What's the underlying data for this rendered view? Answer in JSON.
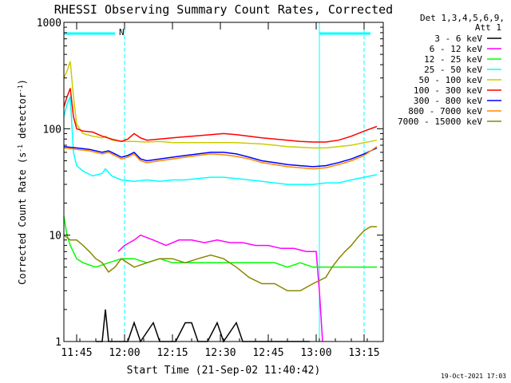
{
  "chart_data": {
    "type": "line",
    "title": "RHESSI Observing Summary Count Rates, Corrected",
    "xlabel": "Start Time (21-Sep-02 11:40:42)",
    "ylabel_main": "Corrected Count Rate (s",
    "ylabel_sup1": "-1",
    "ylabel_mid": " detector",
    "ylabel_sup2": "-1",
    "ylabel_end": ")",
    "y_log": true,
    "ylim": [
      1,
      1000
    ],
    "xlim_min": [
      0,
      100
    ],
    "xticks": [
      {
        "t": 4,
        "label": "11:45"
      },
      {
        "t": 19,
        "label": "12:00"
      },
      {
        "t": 34,
        "label": "12:15"
      },
      {
        "t": 49,
        "label": "12:30"
      },
      {
        "t": 64,
        "label": "12:45"
      },
      {
        "t": 79,
        "label": "13:00"
      },
      {
        "t": 94,
        "label": "13:15"
      }
    ],
    "yticks": [
      {
        "v": 1,
        "label": "1"
      },
      {
        "v": 10,
        "label": "10"
      },
      {
        "v": 100,
        "label": "100"
      },
      {
        "v": 1000,
        "label": "1000"
      }
    ],
    "legend_header1": "Det 1,3,4,5,6,9,",
    "legend_header2": "Att 1",
    "legend_placement": "right",
    "attenuator_flag": "N",
    "timestamp": "19-Oct-2021 17:03",
    "vlines_solid_min": [
      0,
      80
    ],
    "vlines_dashed_min": [
      19,
      94
    ],
    "status_bars_min": [
      [
        0,
        16
      ],
      [
        80,
        96
      ]
    ],
    "series": [
      {
        "name": "3 - 6 keV",
        "color": "#000000",
        "points": [
          [
            10,
            1
          ],
          [
            12,
            1
          ],
          [
            13,
            2
          ],
          [
            14,
            1
          ],
          [
            17,
            1
          ],
          [
            20,
            1
          ],
          [
            22,
            1.5
          ],
          [
            24,
            1
          ],
          [
            28,
            1.5
          ],
          [
            30,
            1
          ],
          [
            35,
            1
          ],
          [
            38,
            1.5
          ],
          [
            40,
            1.5
          ],
          [
            42,
            1
          ],
          [
            45,
            1
          ],
          [
            48,
            1.5
          ],
          [
            50,
            1
          ],
          [
            54,
            1.5
          ],
          [
            56,
            1
          ],
          [
            60,
            1
          ],
          [
            64,
            1
          ],
          [
            67,
            1
          ],
          [
            70,
            1
          ],
          [
            75,
            1
          ],
          [
            77,
            1
          ]
        ]
      },
      {
        "name": "6 - 12 keV",
        "color": "#ff00ff",
        "points": [
          [
            17,
            7
          ],
          [
            19,
            8
          ],
          [
            22,
            9
          ],
          [
            24,
            10
          ],
          [
            28,
            9
          ],
          [
            32,
            8
          ],
          [
            36,
            9
          ],
          [
            40,
            9
          ],
          [
            44,
            8.5
          ],
          [
            48,
            9
          ],
          [
            52,
            8.5
          ],
          [
            56,
            8.5
          ],
          [
            60,
            8
          ],
          [
            64,
            8
          ],
          [
            68,
            7.5
          ],
          [
            72,
            7.5
          ],
          [
            76,
            7
          ],
          [
            79,
            7
          ],
          [
            80,
            3
          ],
          [
            81,
            1
          ]
        ]
      },
      {
        "name": "12 - 25 keV",
        "color": "#00ff00",
        "points": [
          [
            0,
            15
          ],
          [
            1,
            10
          ],
          [
            2,
            8
          ],
          [
            4,
            6
          ],
          [
            6,
            5.5
          ],
          [
            10,
            5
          ],
          [
            14,
            5.5
          ],
          [
            18,
            6
          ],
          [
            22,
            6
          ],
          [
            26,
            5.5
          ],
          [
            30,
            6
          ],
          [
            34,
            5.5
          ],
          [
            38,
            5.5
          ],
          [
            42,
            5.5
          ],
          [
            46,
            5.5
          ],
          [
            50,
            5.5
          ],
          [
            54,
            5.5
          ],
          [
            58,
            5.5
          ],
          [
            62,
            5.5
          ],
          [
            66,
            5.5
          ],
          [
            70,
            5
          ],
          [
            74,
            5.5
          ],
          [
            78,
            5
          ],
          [
            82,
            5
          ],
          [
            86,
            5
          ],
          [
            90,
            5
          ],
          [
            94,
            5
          ],
          [
            98,
            5
          ]
        ]
      },
      {
        "name": "25 - 50 keV",
        "color": "#00ffff",
        "points": [
          [
            0,
            130
          ],
          [
            1,
            170
          ],
          [
            2,
            200
          ],
          [
            3,
            60
          ],
          [
            4,
            45
          ],
          [
            6,
            40
          ],
          [
            9,
            36
          ],
          [
            12,
            38
          ],
          [
            13,
            42
          ],
          [
            15,
            36
          ],
          [
            18,
            33
          ],
          [
            22,
            32
          ],
          [
            26,
            33
          ],
          [
            30,
            32
          ],
          [
            34,
            33
          ],
          [
            38,
            33
          ],
          [
            42,
            34
          ],
          [
            46,
            35
          ],
          [
            50,
            35
          ],
          [
            54,
            34
          ],
          [
            58,
            33
          ],
          [
            62,
            32
          ],
          [
            66,
            31
          ],
          [
            70,
            30
          ],
          [
            74,
            30
          ],
          [
            78,
            30
          ],
          [
            82,
            31
          ],
          [
            86,
            31
          ],
          [
            90,
            33
          ],
          [
            94,
            35
          ],
          [
            98,
            37
          ]
        ]
      },
      {
        "name": "50 - 100 keV",
        "color": "#cccc00",
        "points": [
          [
            0,
            300
          ],
          [
            1,
            350
          ],
          [
            2,
            430
          ],
          [
            3,
            200
          ],
          [
            4,
            110
          ],
          [
            6,
            90
          ],
          [
            9,
            85
          ],
          [
            12,
            82
          ],
          [
            13,
            85
          ],
          [
            15,
            78
          ],
          [
            18,
            76
          ],
          [
            22,
            76
          ],
          [
            26,
            75
          ],
          [
            30,
            76
          ],
          [
            34,
            74
          ],
          [
            38,
            74
          ],
          [
            42,
            74
          ],
          [
            46,
            74
          ],
          [
            50,
            74
          ],
          [
            54,
            74
          ],
          [
            58,
            73
          ],
          [
            62,
            72
          ],
          [
            66,
            70
          ],
          [
            70,
            68
          ],
          [
            74,
            67
          ],
          [
            78,
            66
          ],
          [
            82,
            66
          ],
          [
            86,
            68
          ],
          [
            90,
            70
          ],
          [
            94,
            74
          ],
          [
            98,
            78
          ]
        ]
      },
      {
        "name": "100 - 300 keV",
        "color": "#ff0000",
        "points": [
          [
            0,
            160
          ],
          [
            1,
            200
          ],
          [
            2,
            240
          ],
          [
            3,
            130
          ],
          [
            4,
            100
          ],
          [
            6,
            95
          ],
          [
            9,
            93
          ],
          [
            12,
            85
          ],
          [
            15,
            80
          ],
          [
            18,
            76
          ],
          [
            20,
            80
          ],
          [
            22,
            90
          ],
          [
            24,
            82
          ],
          [
            26,
            78
          ],
          [
            30,
            80
          ],
          [
            34,
            82
          ],
          [
            38,
            84
          ],
          [
            42,
            86
          ],
          [
            46,
            88
          ],
          [
            50,
            90
          ],
          [
            54,
            88
          ],
          [
            58,
            85
          ],
          [
            62,
            82
          ],
          [
            66,
            80
          ],
          [
            70,
            78
          ],
          [
            74,
            76
          ],
          [
            78,
            75
          ],
          [
            82,
            75
          ],
          [
            86,
            78
          ],
          [
            90,
            85
          ],
          [
            94,
            95
          ],
          [
            98,
            105
          ]
        ]
      },
      {
        "name": "300 - 800 keV",
        "color": "#0000ff",
        "points": [
          [
            0,
            68
          ],
          [
            4,
            66
          ],
          [
            8,
            64
          ],
          [
            12,
            60
          ],
          [
            14,
            62
          ],
          [
            16,
            58
          ],
          [
            18,
            54
          ],
          [
            20,
            56
          ],
          [
            22,
            60
          ],
          [
            24,
            52
          ],
          [
            26,
            50
          ],
          [
            30,
            52
          ],
          [
            34,
            54
          ],
          [
            38,
            56
          ],
          [
            42,
            58
          ],
          [
            46,
            60
          ],
          [
            50,
            60
          ],
          [
            54,
            58
          ],
          [
            58,
            54
          ],
          [
            62,
            50
          ],
          [
            66,
            48
          ],
          [
            70,
            46
          ],
          [
            74,
            45
          ],
          [
            78,
            44
          ],
          [
            82,
            45
          ],
          [
            86,
            48
          ],
          [
            90,
            52
          ],
          [
            94,
            58
          ],
          [
            98,
            66
          ]
        ]
      },
      {
        "name": "800 - 7000 keV",
        "color": "#ff8800",
        "points": [
          [
            0,
            66
          ],
          [
            4,
            64
          ],
          [
            8,
            62
          ],
          [
            12,
            58
          ],
          [
            14,
            60
          ],
          [
            16,
            56
          ],
          [
            18,
            52
          ],
          [
            20,
            54
          ],
          [
            22,
            58
          ],
          [
            24,
            50
          ],
          [
            26,
            48
          ],
          [
            30,
            50
          ],
          [
            34,
            52
          ],
          [
            38,
            54
          ],
          [
            42,
            56
          ],
          [
            46,
            58
          ],
          [
            50,
            57
          ],
          [
            54,
            55
          ],
          [
            58,
            52
          ],
          [
            62,
            48
          ],
          [
            66,
            46
          ],
          [
            70,
            44
          ],
          [
            74,
            43
          ],
          [
            78,
            42
          ],
          [
            82,
            43
          ],
          [
            86,
            46
          ],
          [
            90,
            50
          ],
          [
            94,
            56
          ],
          [
            98,
            68
          ]
        ]
      },
      {
        "name": "7000 - 15000 keV",
        "color": "#888800",
        "points": [
          [
            0,
            10
          ],
          [
            2,
            9
          ],
          [
            4,
            9
          ],
          [
            6,
            8
          ],
          [
            8,
            7
          ],
          [
            10,
            6
          ],
          [
            12,
            5.5
          ],
          [
            14,
            4.5
          ],
          [
            16,
            5
          ],
          [
            18,
            6
          ],
          [
            22,
            5
          ],
          [
            26,
            5.5
          ],
          [
            30,
            6
          ],
          [
            34,
            6
          ],
          [
            38,
            5.5
          ],
          [
            42,
            6
          ],
          [
            46,
            6.5
          ],
          [
            50,
            6
          ],
          [
            54,
            5
          ],
          [
            58,
            4
          ],
          [
            62,
            3.5
          ],
          [
            66,
            3.5
          ],
          [
            70,
            3
          ],
          [
            74,
            3
          ],
          [
            78,
            3.5
          ],
          [
            82,
            4
          ],
          [
            84,
            5
          ],
          [
            86,
            6
          ],
          [
            88,
            7
          ],
          [
            90,
            8
          ],
          [
            92,
            9.5
          ],
          [
            94,
            11
          ],
          [
            96,
            12
          ],
          [
            98,
            12
          ]
        ]
      }
    ]
  }
}
